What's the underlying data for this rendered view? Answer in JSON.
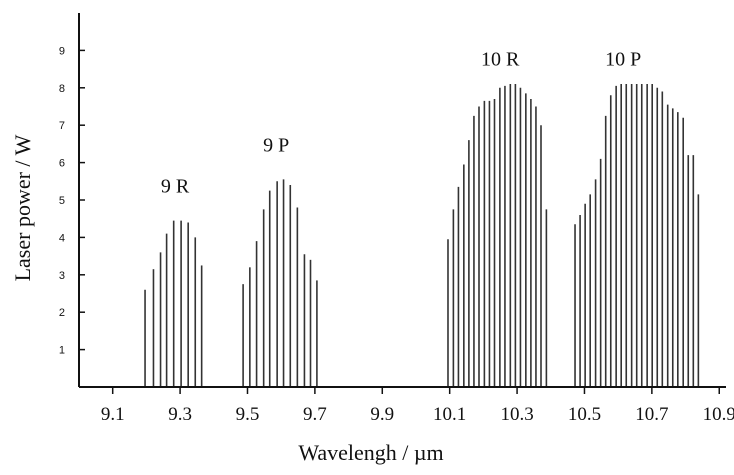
{
  "chart_data": {
    "type": "bar",
    "title": "",
    "xlabel": "Wavelengh / µm",
    "ylabel": "Laser power / W",
    "xlim": [
      9.0,
      10.92
    ],
    "ylim": [
      0,
      10
    ],
    "x_ticks": [
      "9.1",
      "9.3",
      "9.5",
      "9.7",
      "9.9",
      "10.1",
      "10.3",
      "10.5",
      "10.7",
      "10.9"
    ],
    "y_ticks": [
      "1",
      "2",
      "3",
      "4",
      "5",
      "6",
      "7",
      "8",
      "9"
    ],
    "grid": false,
    "annotations": [
      {
        "text": "9 R",
        "x": 9.285,
        "y": 5.2
      },
      {
        "text": "9 P",
        "x": 9.585,
        "y": 6.3
      },
      {
        "text": "10 R",
        "x": 10.25,
        "y": 8.6
      },
      {
        "text": "10 P",
        "x": 10.615,
        "y": 8.6
      }
    ],
    "series": [
      {
        "x": [
          9.196,
          9.221,
          9.242,
          9.26,
          9.281,
          9.303,
          9.324,
          9.345,
          9.364
        ],
        "values": [
          2.6,
          3.15,
          3.6,
          4.1,
          4.45,
          4.45,
          4.4,
          4.0,
          3.25
        ]
      },
      {
        "x": [
          9.487,
          9.507,
          9.527,
          9.548,
          9.566,
          9.588,
          9.607,
          9.627,
          9.648,
          9.669,
          9.687,
          9.706
        ],
        "values": [
          2.75,
          3.2,
          3.9,
          4.75,
          5.25,
          5.5,
          5.55,
          5.4,
          4.8,
          3.55,
          3.4,
          2.85
        ]
      },
      {
        "x": [
          10.095,
          10.111,
          10.126,
          10.142,
          10.157,
          10.172,
          10.187,
          10.203,
          10.218,
          10.233,
          10.249,
          10.264,
          10.28,
          10.295,
          10.31,
          10.326,
          10.341,
          10.356,
          10.371,
          10.387
        ],
        "values": [
          3.95,
          4.75,
          5.35,
          5.95,
          6.6,
          7.25,
          7.5,
          7.65,
          7.65,
          7.7,
          8.0,
          8.05,
          8.1,
          8.1,
          8.0,
          7.85,
          7.7,
          7.5,
          7.0,
          4.75
        ]
      },
      {
        "x": [
          10.472,
          10.487,
          10.502,
          10.517,
          10.533,
          10.548,
          10.563,
          10.578,
          10.594,
          10.609,
          10.624,
          10.64,
          10.655,
          10.67,
          10.686,
          10.701,
          10.716,
          10.731,
          10.747,
          10.762,
          10.777,
          10.793,
          10.808,
          10.823,
          10.838
        ],
        "values": [
          4.35,
          4.6,
          4.9,
          5.15,
          5.55,
          6.1,
          7.25,
          7.8,
          8.05,
          8.1,
          8.1,
          8.1,
          8.1,
          8.1,
          8.1,
          8.1,
          8.0,
          7.9,
          7.55,
          7.45,
          7.35,
          7.2,
          6.2,
          6.2,
          5.15
        ]
      }
    ]
  }
}
